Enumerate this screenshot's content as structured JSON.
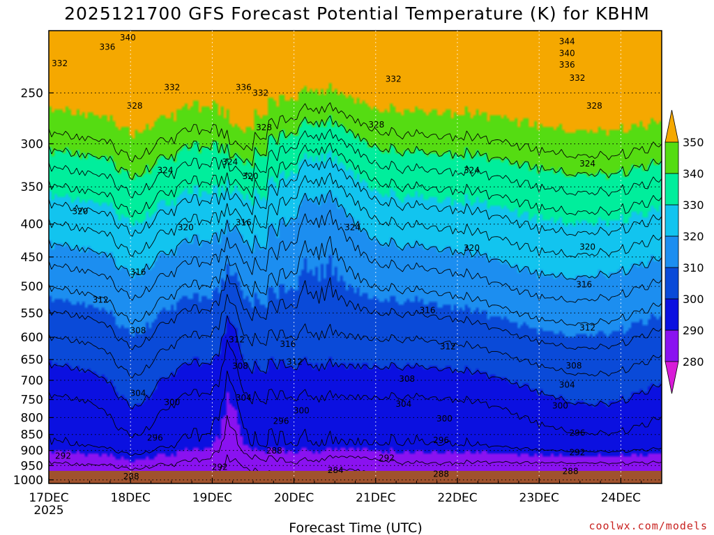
{
  "colors": {
    "bands": [
      "#d81bd8",
      "#8a12f0",
      "#0b10e0",
      "#0a4ad8",
      "#1c8ef0",
      "#12c4ef",
      "#00ee9c",
      "#55dc12",
      "#f5f514",
      "#f5a800"
    ],
    "ground": "#a0522d",
    "contour": "#000000",
    "credit": "#c8201e"
  },
  "chart_data": {
    "type": "contour",
    "title": "2025121700 GFS Forecast Potential Temperature (K) for KBHM",
    "xlabel": "Forecast Time (UTC)",
    "ylabel": "",
    "credit": "coolwx.com/models",
    "x_ticks": [
      {
        "t": 0,
        "label": "17DEC"
      },
      {
        "t": 24,
        "label": "18DEC"
      },
      {
        "t": 48,
        "label": "19DEC"
      },
      {
        "t": 72,
        "label": "20DEC"
      },
      {
        "t": 96,
        "label": "21DEC"
      },
      {
        "t": 120,
        "label": "22DEC"
      },
      {
        "t": 144,
        "label": "23DEC"
      },
      {
        "t": 168,
        "label": "24DEC"
      }
    ],
    "x_year_label": "2025",
    "x_range_hours": [
      0,
      180
    ],
    "y_axis": "pressure (hPa), log scale, top ~200",
    "y_ticks": [
      250,
      300,
      350,
      400,
      450,
      500,
      550,
      600,
      650,
      700,
      750,
      800,
      850,
      900,
      950,
      1000
    ],
    "colorbar": {
      "levels": [
        280,
        290,
        300,
        310,
        320,
        330,
        340,
        350
      ],
      "labels": [
        "280",
        "290",
        "300",
        "310",
        "320",
        "330",
        "340",
        "350"
      ],
      "extend": "both"
    },
    "contour_interval_K": 4,
    "contour_levels": [
      284,
      288,
      292,
      296,
      300,
      304,
      308,
      312,
      316,
      320,
      324,
      328,
      332,
      336,
      340,
      344
    ],
    "contour_labels": [
      {
        "text": "340",
        "t": 23.2,
        "p": 205
      },
      {
        "text": "336",
        "t": 17.2,
        "p": 212
      },
      {
        "text": "332",
        "t": 3.2,
        "p": 225
      },
      {
        "text": "328",
        "t": 25.2,
        "p": 262
      },
      {
        "text": "332",
        "t": 36.2,
        "p": 245
      },
      {
        "text": "336",
        "t": 57.2,
        "p": 245
      },
      {
        "text": "332",
        "t": 62.2,
        "p": 250
      },
      {
        "text": "328",
        "t": 63.2,
        "p": 283
      },
      {
        "text": "324",
        "t": 53.2,
        "p": 320
      },
      {
        "text": "320",
        "t": 59.2,
        "p": 337
      },
      {
        "text": "324",
        "t": 34.2,
        "p": 330
      },
      {
        "text": "320",
        "t": 9.2,
        "p": 382
      },
      {
        "text": "320",
        "t": 40.2,
        "p": 405
      },
      {
        "text": "316",
        "t": 57.2,
        "p": 398
      },
      {
        "text": "316",
        "t": 26.2,
        "p": 475
      },
      {
        "text": "312",
        "t": 15.2,
        "p": 525
      },
      {
        "text": "308",
        "t": 26.2,
        "p": 586
      },
      {
        "text": "312",
        "t": 55.2,
        "p": 605
      },
      {
        "text": "316",
        "t": 70.2,
        "p": 615
      },
      {
        "text": "312",
        "t": 72.2,
        "p": 655
      },
      {
        "text": "308",
        "t": 56.2,
        "p": 665
      },
      {
        "text": "304",
        "t": 26.2,
        "p": 733
      },
      {
        "text": "300",
        "t": 36.2,
        "p": 757
      },
      {
        "text": "304",
        "t": 57.2,
        "p": 745
      },
      {
        "text": "300",
        "t": 74.2,
        "p": 780
      },
      {
        "text": "296",
        "t": 68.2,
        "p": 810
      },
      {
        "text": "296",
        "t": 31.2,
        "p": 860
      },
      {
        "text": "292",
        "t": 4.2,
        "p": 918
      },
      {
        "text": "292",
        "t": 50.2,
        "p": 955
      },
      {
        "text": "288",
        "t": 66.2,
        "p": 901
      },
      {
        "text": "284",
        "t": 84.2,
        "p": 966
      },
      {
        "text": "288",
        "t": 24.2,
        "p": 988
      },
      {
        "text": "292",
        "t": 99.2,
        "p": 925
      },
      {
        "text": "288",
        "t": 115.2,
        "p": 980
      },
      {
        "text": "296",
        "t": 115.2,
        "p": 868
      },
      {
        "text": "300",
        "t": 116.2,
        "p": 803
      },
      {
        "text": "304",
        "t": 104.2,
        "p": 762
      },
      {
        "text": "308",
        "t": 105.2,
        "p": 697
      },
      {
        "text": "312",
        "t": 117.2,
        "p": 620
      },
      {
        "text": "316",
        "t": 111.2,
        "p": 545
      },
      {
        "text": "320",
        "t": 124.2,
        "p": 436
      },
      {
        "text": "324",
        "t": 124.2,
        "p": 330
      },
      {
        "text": "324",
        "t": 89.2,
        "p": 405
      },
      {
        "text": "328",
        "t": 96.2,
        "p": 280
      },
      {
        "text": "332",
        "t": 101.2,
        "p": 238
      },
      {
        "text": "344",
        "t": 152.2,
        "p": 208
      },
      {
        "text": "340",
        "t": 152.2,
        "p": 217
      },
      {
        "text": "336",
        "t": 152.2,
        "p": 226
      },
      {
        "text": "332",
        "t": 155.2,
        "p": 237
      },
      {
        "text": "328",
        "t": 160.2,
        "p": 262
      },
      {
        "text": "324",
        "t": 158.2,
        "p": 322
      },
      {
        "text": "320",
        "t": 158.2,
        "p": 434
      },
      {
        "text": "316",
        "t": 157.2,
        "p": 497
      },
      {
        "text": "312",
        "t": 158.2,
        "p": 580
      },
      {
        "text": "308",
        "t": 154.2,
        "p": 664
      },
      {
        "text": "304",
        "t": 152.2,
        "p": 712
      },
      {
        "text": "300",
        "t": 150.2,
        "p": 767
      },
      {
        "text": "296",
        "t": 155.2,
        "p": 845
      },
      {
        "text": "292",
        "t": 155.2,
        "p": 906
      },
      {
        "text": "288",
        "t": 153.2,
        "p": 970
      }
    ]
  }
}
